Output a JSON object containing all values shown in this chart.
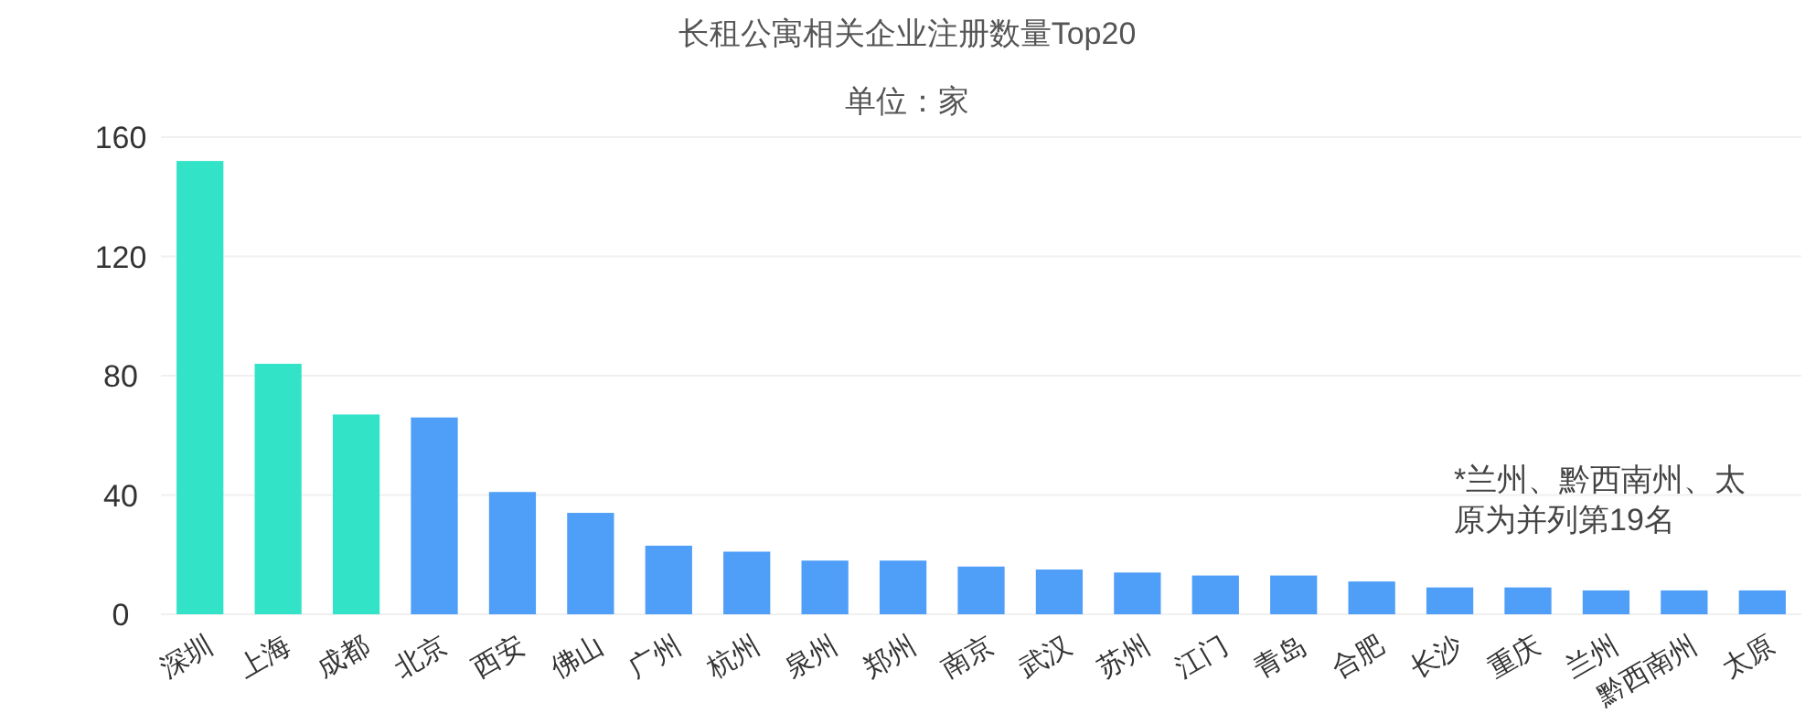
{
  "chart_data": {
    "type": "bar",
    "title": "长租公寓相关企业注册数量Top20",
    "subtitle": "单位：家",
    "categories": [
      "深圳",
      "上海",
      "成都",
      "北京",
      "西安",
      "佛山",
      "广州",
      "杭州",
      "泉州",
      "郑州",
      "南京",
      "武汉",
      "苏州",
      "江门",
      "青岛",
      "合肥",
      "长沙",
      "重庆",
      "兰州",
      "黔西南州",
      "太原"
    ],
    "values": [
      152,
      84,
      67,
      66,
      41,
      34,
      23,
      21,
      18,
      18,
      16,
      15,
      14,
      13,
      13,
      11,
      9,
      9,
      8,
      8,
      8
    ],
    "colors": [
      "#33e3c8",
      "#33e3c8",
      "#33e3c8",
      "#4f9ef8",
      "#4f9ef8",
      "#4f9ef8",
      "#4f9ef8",
      "#4f9ef8",
      "#4f9ef8",
      "#4f9ef8",
      "#4f9ef8",
      "#4f9ef8",
      "#4f9ef8",
      "#4f9ef8",
      "#4f9ef8",
      "#4f9ef8",
      "#4f9ef8",
      "#4f9ef8",
      "#4f9ef8",
      "#4f9ef8",
      "#4f9ef8"
    ],
    "ylim": [
      0,
      160
    ],
    "yticks": [
      0,
      40,
      80,
      120,
      160
    ],
    "grid": "y",
    "annotations": [
      "*兰州、黔西南州、太原为并列第19名"
    ]
  }
}
